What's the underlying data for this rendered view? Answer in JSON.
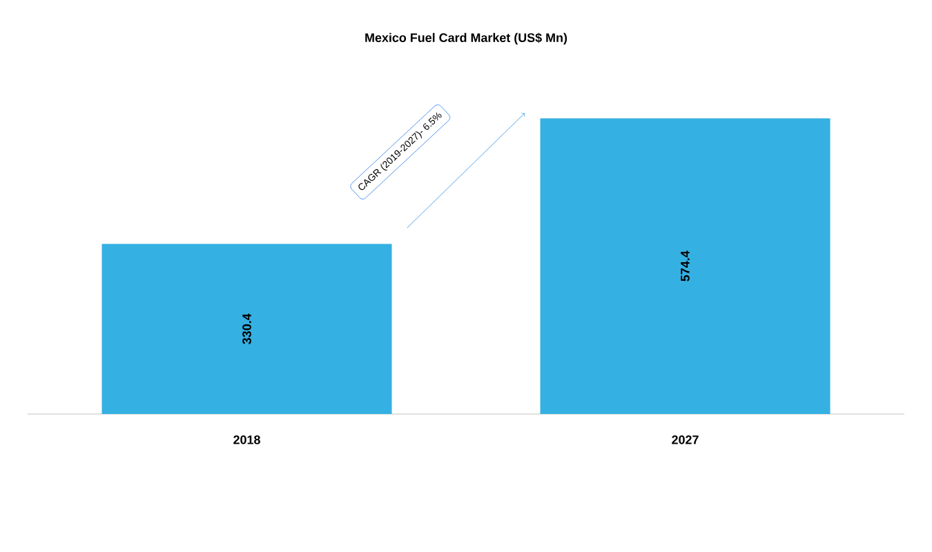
{
  "chart_data": {
    "type": "bar",
    "title": "Mexico Fuel Card Market (US$ Mn)",
    "categories": [
      "2018",
      "2027"
    ],
    "values": [
      330.4,
      574.4
    ],
    "color": "#35b0e2",
    "data_labels": true,
    "annotations": [
      "CAGR (2019-2027)- 6.5%"
    ]
  }
}
